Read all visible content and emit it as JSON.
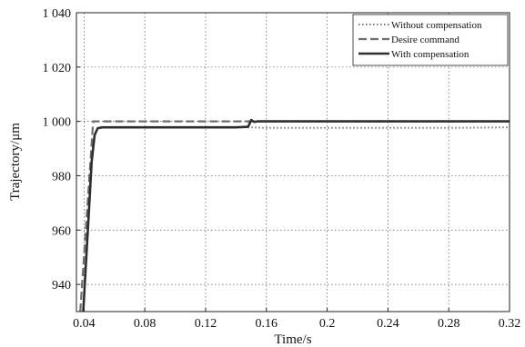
{
  "chart_data": {
    "type": "line",
    "title": "",
    "xlabel": "Time/s",
    "ylabel": "Trajectory/μm",
    "xlim": [
      0.035,
      0.32
    ],
    "ylim": [
      930,
      1040
    ],
    "grid": true,
    "legend_position": "top-right",
    "xticks": [
      0.04,
      0.08,
      0.12,
      0.16,
      0.2,
      0.24,
      0.28,
      0.32
    ],
    "xtick_labels": [
      "0.04",
      "0.08",
      "0.12",
      "0.16",
      "0.2",
      "0.24",
      "0.28",
      "0.32"
    ],
    "yticks": [
      940,
      960,
      980,
      1000,
      1020,
      1040
    ],
    "ytick_labels": [
      "940",
      "960",
      "980",
      "1 000",
      "1 020",
      "1 040"
    ],
    "series": [
      {
        "name": "Without compensation",
        "style": "dotted",
        "color": "#7a7a7a",
        "x": [
          0.0395,
          0.041,
          0.043,
          0.045,
          0.047,
          0.049,
          0.052,
          0.06,
          0.08,
          0.1,
          0.12,
          0.14,
          0.15,
          0.16,
          0.2,
          0.24,
          0.28,
          0.32
        ],
        "y": [
          930,
          945,
          965,
          985,
          995,
          997.5,
          997.8,
          997.8,
          997.8,
          997.8,
          997.8,
          997.8,
          997.8,
          997.6,
          997.6,
          997.6,
          997.6,
          997.8
        ]
      },
      {
        "name": "Desire command",
        "style": "dashed",
        "color": "#6e6e6e",
        "x": [
          0.0375,
          0.046,
          0.32
        ],
        "y": [
          930,
          1000,
          1000
        ]
      },
      {
        "name": "With compensation",
        "style": "solid",
        "color": "#2e2e2e",
        "x": [
          0.0395,
          0.041,
          0.043,
          0.045,
          0.047,
          0.049,
          0.052,
          0.06,
          0.08,
          0.1,
          0.12,
          0.14,
          0.148,
          0.15,
          0.152,
          0.154,
          0.16,
          0.2,
          0.24,
          0.28,
          0.32
        ],
        "y": [
          930,
          945,
          965,
          985,
          995,
          997.5,
          997.8,
          997.8,
          997.8,
          997.8,
          997.8,
          997.8,
          998,
          1000.5,
          999.8,
          1000,
          1000,
          1000,
          1000,
          1000,
          1000
        ]
      }
    ]
  }
}
